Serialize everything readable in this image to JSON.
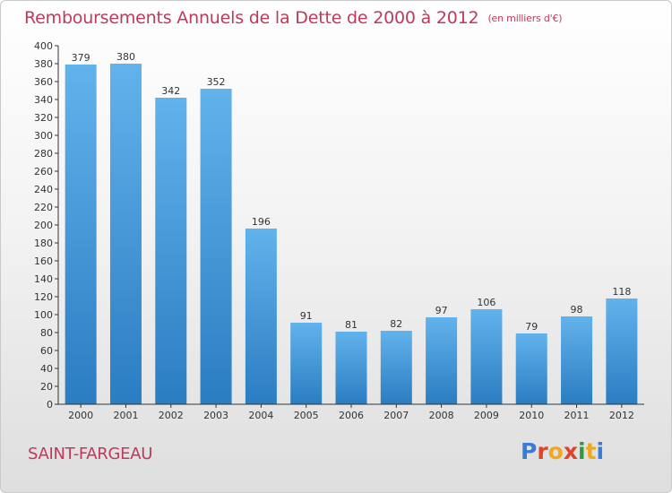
{
  "title": "Remboursements Annuels de la Dette de 2000 à 2012",
  "subtitle": "(en milliers d'€)",
  "commune": "SAINT-FARGEAU",
  "logo": {
    "text": "Proxiti",
    "colors": [
      "#3a7bd5",
      "#e0432b",
      "#f2a81d",
      "#e0432b",
      "#2e9c3c",
      "#f2a81d",
      "#3a7bd5"
    ]
  },
  "colors": {
    "bar_top": "#62b2ec",
    "bar_bottom": "#2a7dc1",
    "title": "#c0395a",
    "axis": "#333333"
  },
  "chart_data": {
    "type": "bar",
    "categories": [
      "2000",
      "2001",
      "2002",
      "2003",
      "2004",
      "2005",
      "2006",
      "2007",
      "2008",
      "2009",
      "2010",
      "2011",
      "2012"
    ],
    "values": [
      379,
      380,
      342,
      352,
      196,
      91,
      81,
      82,
      97,
      106,
      79,
      98,
      118
    ],
    "ylim": [
      0,
      400
    ],
    "yticks": [
      0,
      20,
      40,
      60,
      80,
      100,
      120,
      140,
      160,
      180,
      200,
      220,
      240,
      260,
      280,
      300,
      320,
      340,
      360,
      380,
      400
    ],
    "grid": false,
    "data_labels": true
  }
}
